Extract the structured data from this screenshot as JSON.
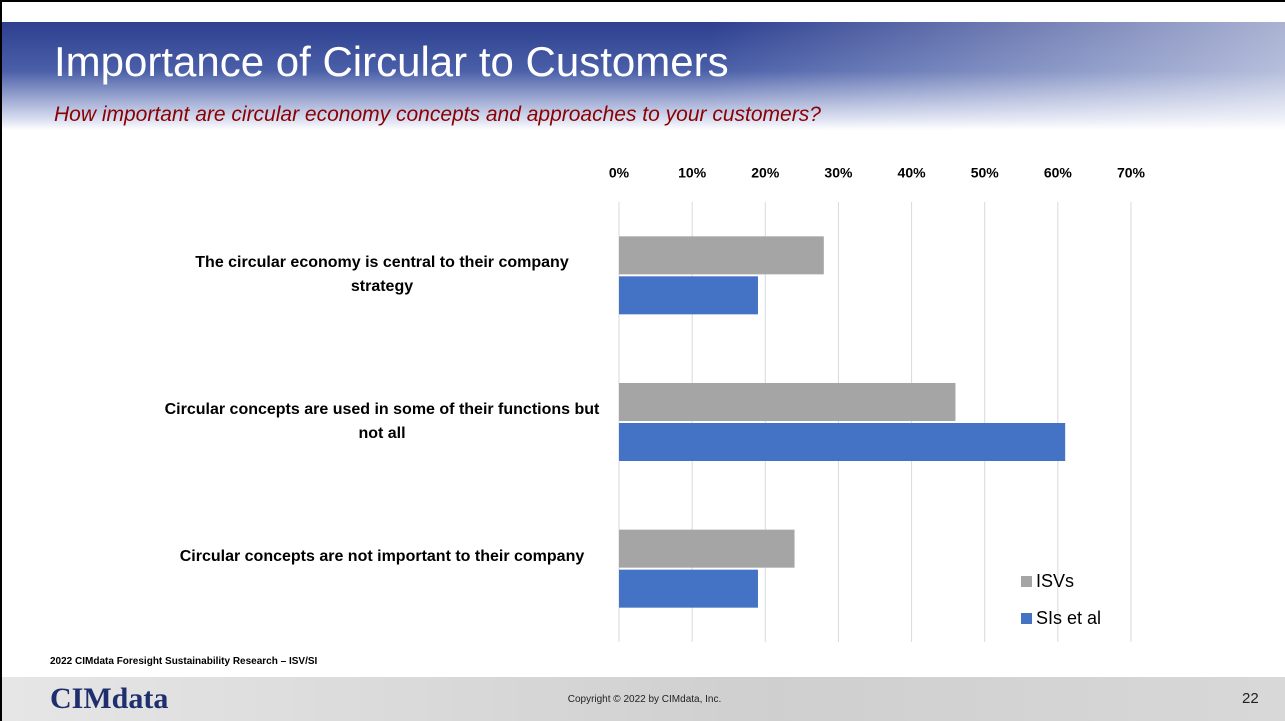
{
  "chart_data": {
    "type": "hbar",
    "title": "Importance of Circular to Customers",
    "subtitle": "How important are circular economy concepts and approaches to your customers?",
    "categories": [
      "The circular economy is central to their company strategy",
      "Circular concepts are used in some of their functions but not all",
      "Circular concepts are not important to their company"
    ],
    "series": [
      {
        "name": "ISVs",
        "color": "#a5a5a5",
        "values": [
          28,
          46,
          24
        ]
      },
      {
        "name": "SIs et al",
        "color": "#4472c4",
        "values": [
          19,
          61,
          19
        ]
      }
    ],
    "xlim": [
      0,
      70
    ],
    "xticks": [
      {
        "value": 0,
        "label": "0%"
      },
      {
        "value": 10,
        "label": "10%"
      },
      {
        "value": 20,
        "label": "20%"
      },
      {
        "value": 30,
        "label": "30%"
      },
      {
        "value": 40,
        "label": "40%"
      },
      {
        "value": 50,
        "label": "50%"
      },
      {
        "value": 60,
        "label": "60%"
      },
      {
        "value": 70,
        "label": "70%"
      }
    ],
    "grid": true,
    "legend": "bottom-right"
  },
  "slide": {
    "note": "2022 CIMdata Foresight Sustainability Research – ISV/SI",
    "logo": "CIMdata",
    "copyright": "Copyright © 2022 by CIMdata, Inc.",
    "page": "22"
  }
}
